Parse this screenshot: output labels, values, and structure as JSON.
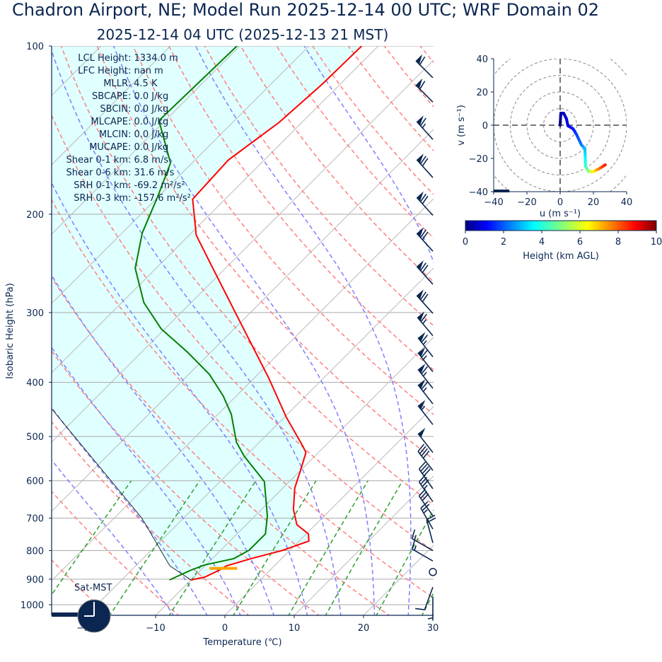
{
  "title": "Chadron Airport, NE; Model Run 2025-12-14 00 UTC; WRF Domain 02",
  "subtitle": "2025-12-14 04 UTC  (2025-12-13 21 MST)",
  "indices": [
    "LCL Height: 1334.0 m",
    "LFC Height: nan m",
    "MLLR: 4.5 K",
    "SBCAPE: 0.0 J/kg",
    "SBCIN: 0.0 J/kg",
    "MLCAPE: 0.0 J/kg",
    "MLCIN: 0.0 J/kg",
    "MUCAPE: 0.0 J/kg",
    "Shear 0-1 km: 6.8 m/s",
    "Shear 0-6 km: 31.6 m/s",
    "SRH 0-1 km: -69.2 m²/s²",
    "SRH 0-3 km: -157.6 m²/s²"
  ],
  "clock_label": "Sat-MST",
  "colors": {
    "temperature": "#ff0000",
    "dewpoint": "#008000",
    "parcel": "#000000",
    "cin_fill": "#e0ffff",
    "lcl": "#ffa500",
    "dry_adiabat": "#ff7f7f",
    "moist_adiabat": "#7f7fff",
    "mixing_ratio": "#2ca02c",
    "barbs": "#0b2650"
  },
  "chart_data": [
    {
      "type": "line",
      "subtype": "skew-t log-p",
      "xlabel": "Temperature (℃)",
      "ylabel": "Isobaric Height (hPa)",
      "xlim": [
        -25,
        30
      ],
      "ylim": [
        1050,
        100
      ],
      "y_scale": "log",
      "x_ticks": [
        "−20",
        "−10",
        "0",
        "10",
        "20",
        "30"
      ],
      "x_tick_values": [
        -20,
        -10,
        0,
        10,
        20,
        30
      ],
      "y_ticks": [
        "100",
        "200",
        "300",
        "400",
        "500",
        "600",
        "700",
        "800",
        "900",
        "1000"
      ],
      "y_tick_values": [
        100,
        200,
        300,
        400,
        500,
        600,
        700,
        800,
        900,
        1000
      ],
      "grid": true,
      "temperature": {
        "p": [
          903,
          892,
          867,
          852,
          827,
          799,
          769,
          747,
          719,
          675,
          618,
          575,
          534,
          519,
          462,
          393,
          312,
          250,
          218,
          188,
          160,
          137,
          117,
          100
        ],
        "T": [
          -10.0,
          -8.4,
          -7.3,
          -6.9,
          -4.4,
          -1.0,
          1.4,
          0.3,
          -2.7,
          -5.4,
          -8.3,
          -10.0,
          -11.8,
          -13.3,
          -19.7,
          -27.9,
          -40.1,
          -51.8,
          -59.0,
          -64.7,
          -65.2,
          -63.3,
          -62.6,
          -62.4
        ]
      },
      "dewpoint": {
        "p": [
          903,
          867,
          849,
          827,
          799,
          747,
          694,
          602,
          542,
          512,
          456,
          423,
          387,
          353,
          321,
          288,
          250,
          216,
          187,
          162,
          136,
          100
        ],
        "T": [
          -13.1,
          -11.4,
          -10.2,
          -6.9,
          -5.9,
          -5.9,
          -8.2,
          -13.6,
          -20.2,
          -23.3,
          -28.1,
          -31.9,
          -37.0,
          -43.4,
          -50.5,
          -56.8,
          -63.0,
          -67.1,
          -70.0,
          -73.1,
          -80.9,
          -80.4
        ]
      },
      "parcel": {
        "p": [
          903,
          852,
          700,
          446,
          300,
          100
        ],
        "T": [
          -10.0,
          -15.1,
          -26.0,
          -54.8,
          -70.0,
          -110.0
        ]
      },
      "lcl": {
        "p": 861,
        "T_range": [
          -9,
          -5
        ]
      },
      "wind_barbs": [
        {
          "p": 114,
          "speed_kt": 60,
          "dir": 315
        },
        {
          "p": 126,
          "speed_kt": 60,
          "dir": 315
        },
        {
          "p": 147,
          "speed_kt": 65,
          "dir": 318
        },
        {
          "p": 172,
          "speed_kt": 70,
          "dir": 318
        },
        {
          "p": 201,
          "speed_kt": 70,
          "dir": 318
        },
        {
          "p": 233,
          "speed_kt": 70,
          "dir": 318
        },
        {
          "p": 267,
          "speed_kt": 70,
          "dir": 318
        },
        {
          "p": 301,
          "speed_kt": 70,
          "dir": 318
        },
        {
          "p": 330,
          "speed_kt": 65,
          "dir": 320
        },
        {
          "p": 360,
          "speed_kt": 65,
          "dir": 322
        },
        {
          "p": 383,
          "speed_kt": 65,
          "dir": 322
        },
        {
          "p": 410,
          "speed_kt": 65,
          "dir": 322
        },
        {
          "p": 437,
          "speed_kt": 65,
          "dir": 322
        },
        {
          "p": 476,
          "speed_kt": 55,
          "dir": 322
        },
        {
          "p": 534,
          "speed_kt": 50,
          "dir": 322
        },
        {
          "p": 575,
          "speed_kt": 40,
          "dir": 322
        },
        {
          "p": 620,
          "speed_kt": 40,
          "dir": 325
        },
        {
          "p": 654,
          "speed_kt": 35,
          "dir": 325
        },
        {
          "p": 693,
          "speed_kt": 30,
          "dir": 325
        },
        {
          "p": 732,
          "speed_kt": 25,
          "dir": 330
        },
        {
          "p": 775,
          "speed_kt": 20,
          "dir": 345
        },
        {
          "p": 800,
          "speed_kt": 15,
          "dir": 300
        },
        {
          "p": 835,
          "speed_kt": 15,
          "dir": 300
        },
        {
          "p": 874,
          "speed_kt": 0,
          "dir": 0
        },
        {
          "p": 930,
          "speed_kt": 10,
          "dir": 200
        },
        {
          "p": 967,
          "speed_kt": 5,
          "dir": 180
        }
      ]
    },
    {
      "type": "line",
      "subtype": "hodograph",
      "xlabel": "u (m s⁻¹)",
      "ylabel": "v (m s⁻¹)",
      "xlim": [
        -40,
        40
      ],
      "ylim": [
        -40,
        40
      ],
      "ticks": [
        "−40",
        "−20",
        "0",
        "20",
        "40"
      ],
      "tick_values": [
        -40,
        -20,
        0,
        20,
        40
      ],
      "rings": [
        10,
        20,
        30,
        40,
        50
      ],
      "u": [
        0,
        0.4,
        2.1,
        3.8,
        4.7,
        7.7,
        9.8,
        12.8,
        14.9,
        15.3,
        17.0,
        19.6,
        23.8,
        27.2
      ],
      "v": [
        0,
        7.2,
        7.2,
        3.8,
        -0.4,
        -2.1,
        -5.5,
        -11.9,
        -14.0,
        -24.7,
        -27.7,
        -28.1,
        -26.0,
        -23.8
      ],
      "height_km": [
        0,
        0.3,
        0.6,
        0.9,
        1.1,
        1.4,
        1.8,
        2.4,
        3.0,
        4.2,
        5.0,
        6.0,
        7.6,
        8.5
      ],
      "colorbar": {
        "label": "Height (km AGL)",
        "ticks": [
          "0",
          "2",
          "4",
          "6",
          "8",
          "10"
        ],
        "range": [
          0,
          10
        ],
        "colormap": "jet"
      }
    }
  ]
}
